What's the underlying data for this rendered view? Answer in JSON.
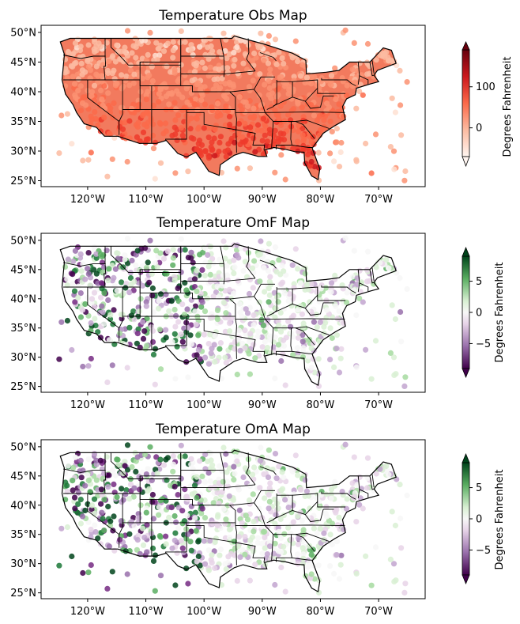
{
  "panels": [
    {
      "title": "Temperature Obs Map",
      "colormap": "Reds",
      "colorbar": {
        "label": "Degrees Fahrenheit",
        "ticks": [
          "100",
          "0"
        ],
        "range": [
          -70,
          190
        ],
        "tick_values": [
          100,
          0
        ],
        "extend": "both"
      }
    },
    {
      "title": "Temperature OmF Map",
      "colormap": "PRGn",
      "colorbar": {
        "label": "Degrees Fahrenheit",
        "ticks": [
          "5",
          "0",
          "−5"
        ],
        "range": [
          -9,
          9
        ],
        "tick_values": [
          5,
          0,
          -5
        ],
        "extend": "both"
      }
    },
    {
      "title": "Temperature OmA Map",
      "colormap": "PRGn",
      "colorbar": {
        "label": "Degrees Fahrenheit",
        "ticks": [
          "5",
          "0",
          "−5"
        ],
        "range": [
          -9,
          9
        ],
        "tick_values": [
          5,
          0,
          -5
        ],
        "extend": "both"
      }
    }
  ],
  "axes": {
    "lat_labels": [
      "50°N",
      "45°N",
      "40°N",
      "35°N",
      "30°N",
      "25°N"
    ],
    "lat_values": [
      50,
      45,
      40,
      35,
      30,
      25
    ],
    "lon_labels": [
      "120°W",
      "110°W",
      "100°W",
      "90°W",
      "80°W",
      "70°W"
    ],
    "lon_values": [
      -120,
      -110,
      -100,
      -90,
      -80,
      -70
    ],
    "lon_range": [
      -128,
      -62
    ],
    "lat_range": [
      24,
      51.2
    ]
  },
  "colors": {
    "obs_fill": "#e9553a",
    "land_neutral": "#ededed",
    "green_dark": "#00441b",
    "purple_dark": "#40004b"
  }
}
